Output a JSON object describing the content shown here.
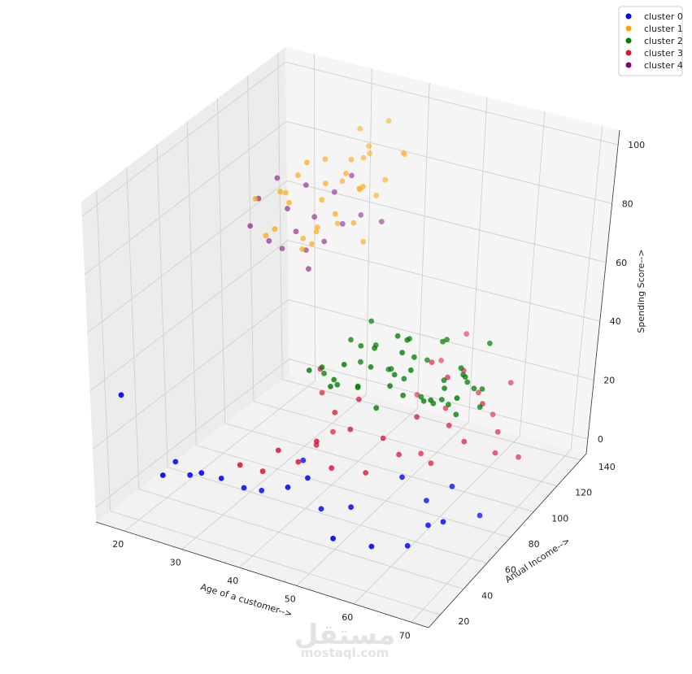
{
  "chart_data": {
    "type": "scatter",
    "projection": "3d",
    "title": "",
    "xlabel": "Age of a customer-->",
    "ylabel": "Anual Income-->",
    "zlabel": "Spending Score-->",
    "xlim": [
      15,
      73
    ],
    "ylim": [
      10,
      145
    ],
    "zlim": [
      -5,
      105
    ],
    "x_ticks": [
      20,
      30,
      40,
      50,
      60,
      70
    ],
    "y_ticks": [
      20,
      40,
      60,
      80,
      100,
      120,
      140
    ],
    "z_ticks": [
      0,
      20,
      40,
      60,
      80,
      100
    ],
    "grid": true,
    "legend_position": "top-right",
    "series": [
      {
        "name": "cluster 0",
        "color": "#0000ff",
        "points": [
          [
            19,
            15,
            39
          ],
          [
            25,
            18,
            14
          ],
          [
            30,
            25,
            15
          ],
          [
            27,
            29,
            11
          ],
          [
            32,
            31,
            12
          ],
          [
            35,
            35,
            9
          ],
          [
            42,
            38,
            12
          ],
          [
            45,
            40,
            16
          ],
          [
            47,
            42,
            6
          ],
          [
            52,
            43,
            9
          ],
          [
            59,
            28,
            6
          ],
          [
            54,
            20,
            9
          ],
          [
            63,
            39,
            4
          ],
          [
            65,
            46,
            9
          ],
          [
            67,
            49,
            10
          ],
          [
            40,
            58,
            12
          ],
          [
            58,
            56,
            17
          ],
          [
            61,
            63,
            8
          ],
          [
            65,
            65,
            14
          ],
          [
            69,
            71,
            4
          ],
          [
            24,
            31,
            13
          ],
          [
            35,
            48,
            3
          ]
        ]
      },
      {
        "name": "cluster 1",
        "color": "#ffa500",
        "points": [
          [
            31,
            78,
            90
          ],
          [
            32,
            80,
            86
          ],
          [
            33,
            82,
            95
          ],
          [
            34,
            84,
            99
          ],
          [
            35,
            87,
            75
          ],
          [
            36,
            89,
            91
          ],
          [
            37,
            92,
            80
          ],
          [
            38,
            95,
            93
          ],
          [
            39,
            97,
            76
          ],
          [
            40,
            99,
            88
          ],
          [
            33,
            101,
            93
          ],
          [
            32,
            103,
            78
          ],
          [
            35,
            105,
            85
          ],
          [
            36,
            107,
            92
          ],
          [
            37,
            109,
            82
          ],
          [
            38,
            111,
            96
          ],
          [
            39,
            113,
            79
          ],
          [
            40,
            115,
            84
          ],
          [
            35,
            117,
            98
          ],
          [
            36,
            120,
            89
          ],
          [
            34,
            124,
            85
          ],
          [
            33,
            126,
            73
          ],
          [
            37,
            129,
            97
          ],
          [
            39,
            132,
            86
          ],
          [
            38,
            137,
            83
          ],
          [
            32,
            70,
            81
          ],
          [
            30,
            72,
            77
          ],
          [
            34,
            88,
            70
          ],
          [
            31,
            94,
            68
          ],
          [
            33,
            96,
            72
          ],
          [
            36,
            98,
            74
          ],
          [
            40,
            100,
            69
          ],
          [
            29,
            90,
            84
          ],
          [
            35,
            77,
            73
          ],
          [
            28,
            73,
            88
          ]
        ]
      },
      {
        "name": "cluster 2",
        "color": "#008000",
        "points": [
          [
            45,
            40,
            52
          ],
          [
            48,
            43,
            47
          ],
          [
            50,
            44,
            55
          ],
          [
            52,
            46,
            48
          ],
          [
            55,
            47,
            42
          ],
          [
            57,
            48,
            50
          ],
          [
            60,
            50,
            56
          ],
          [
            62,
            52,
            46
          ],
          [
            65,
            54,
            51
          ],
          [
            67,
            55,
            43
          ],
          [
            68,
            58,
            53
          ],
          [
            70,
            60,
            45
          ],
          [
            66,
            62,
            55
          ],
          [
            63,
            63,
            49
          ],
          [
            59,
            64,
            41
          ],
          [
            56,
            65,
            58
          ],
          [
            53,
            67,
            46
          ],
          [
            50,
            68,
            52
          ],
          [
            47,
            70,
            44
          ],
          [
            45,
            71,
            50
          ],
          [
            48,
            73,
            57
          ],
          [
            51,
            74,
            42
          ],
          [
            54,
            76,
            53
          ],
          [
            57,
            77,
            47
          ],
          [
            60,
            78,
            55
          ],
          [
            63,
            62,
            43
          ],
          [
            66,
            64,
            52
          ],
          [
            69,
            66,
            48
          ],
          [
            70,
            40,
            56
          ],
          [
            64,
            48,
            49
          ],
          [
            58,
            54,
            45
          ],
          [
            43,
            60,
            42
          ],
          [
            49,
            61,
            54
          ],
          [
            55,
            62,
            60
          ],
          [
            61,
            70,
            58
          ],
          [
            68,
            75,
            59
          ],
          [
            46,
            57,
            41
          ],
          [
            52,
            58,
            56
          ],
          [
            57,
            59,
            48
          ],
          [
            62,
            60,
            42
          ],
          [
            67,
            61,
            53
          ],
          [
            44,
            54,
            47
          ],
          [
            50,
            55,
            43
          ],
          [
            56,
            56,
            50
          ],
          [
            59,
            57,
            57
          ],
          [
            65,
            58,
            44
          ],
          [
            69,
            59,
            51
          ],
          [
            47,
            50,
            46
          ],
          [
            53,
            51,
            53
          ],
          [
            58,
            52,
            60
          ]
        ]
      },
      {
        "name": "cluster 3",
        "color": "#dc143c",
        "points": [
          [
            36,
            28,
            20
          ],
          [
            39,
            32,
            18
          ],
          [
            41,
            35,
            25
          ],
          [
            44,
            37,
            22
          ],
          [
            46,
            42,
            28
          ],
          [
            48,
            45,
            19
          ],
          [
            50,
            50,
            31
          ],
          [
            52,
            54,
            16
          ],
          [
            54,
            58,
            27
          ],
          [
            56,
            62,
            21
          ],
          [
            58,
            66,
            33
          ],
          [
            60,
            70,
            17
          ],
          [
            62,
            74,
            29
          ],
          [
            64,
            78,
            23
          ],
          [
            66,
            82,
            35
          ],
          [
            68,
            86,
            18
          ],
          [
            55,
            90,
            40
          ],
          [
            57,
            94,
            24
          ],
          [
            59,
            98,
            36
          ],
          [
            61,
            102,
            28
          ],
          [
            63,
            106,
            20
          ],
          [
            65,
            110,
            30
          ],
          [
            47,
            115,
            15
          ],
          [
            50,
            120,
            26
          ],
          [
            53,
            126,
            34
          ],
          [
            43,
            55,
            20
          ],
          [
            45,
            60,
            30
          ],
          [
            40,
            70,
            38
          ],
          [
            38,
            80,
            25
          ],
          [
            48,
            65,
            34
          ],
          [
            41,
            76,
            15
          ],
          [
            56,
            80,
            14
          ],
          [
            59,
            85,
            39
          ],
          [
            67,
            92,
            22
          ],
          [
            70,
            97,
            13
          ]
        ]
      },
      {
        "name": "cluster 4",
        "color": "#800080",
        "points": [
          [
            20,
            101,
            64
          ],
          [
            21,
            103,
            73
          ],
          [
            22,
            106,
            58
          ],
          [
            23,
            108,
            79
          ],
          [
            24,
            111,
            68
          ],
          [
            25,
            113,
            60
          ],
          [
            26,
            116,
            75
          ],
          [
            27,
            118,
            64
          ],
          [
            28,
            121,
            55
          ],
          [
            29,
            124,
            71
          ],
          [
            30,
            126,
            60
          ],
          [
            31,
            128,
            76
          ],
          [
            32,
            131,
            62
          ],
          [
            22,
            115,
            52
          ],
          [
            25,
            120,
            51
          ],
          [
            28,
            110,
            50
          ],
          [
            34,
            138,
            58
          ]
        ]
      }
    ]
  },
  "watermark": {
    "arabic": "مستقل",
    "latin": "mostaql.com"
  }
}
